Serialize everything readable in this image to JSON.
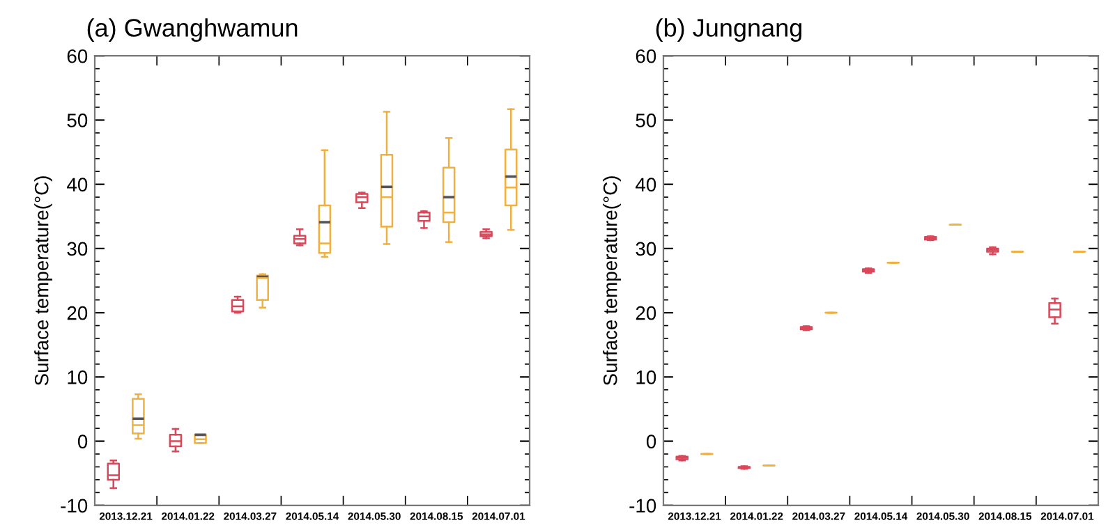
{
  "chart_data": [
    {
      "type": "box",
      "title": "(a) Gwanghwamun",
      "ylabel": "Surface temperature(°C)",
      "categories": [
        "2013.12.21",
        "2014.01.22",
        "2014.03.27",
        "2014.05.14",
        "2014.05.30",
        "2014.08.15",
        "2014.07.01"
      ],
      "ylim": [
        -10,
        60
      ],
      "yticks": [
        -10,
        0,
        10,
        20,
        30,
        40,
        50,
        60
      ],
      "grid": false,
      "series": [
        {
          "color": "#d9485a",
          "boxes": [
            {
              "low": -7.3,
              "q1": -6,
              "median": -5.3,
              "q3": -3.5,
              "high": -3
            },
            {
              "low": -1.6,
              "q1": -0.8,
              "median": 0,
              "q3": 1,
              "high": 1.9
            },
            {
              "low": 20,
              "q1": 20.2,
              "median": 21,
              "q3": 22,
              "high": 22.5
            },
            {
              "low": 30.5,
              "q1": 30.8,
              "median": 31.5,
              "q3": 32,
              "high": 33
            },
            {
              "low": 36.3,
              "q1": 37.2,
              "median": 38,
              "q3": 38.5,
              "high": 38.7
            },
            {
              "low": 33.2,
              "q1": 34.3,
              "median": 35,
              "q3": 35.6,
              "high": 35.8
            },
            {
              "low": 31.6,
              "q1": 31.9,
              "median": 32.2,
              "q3": 32.6,
              "high": 33
            }
          ]
        },
        {
          "color": "#f0b040",
          "boxes": [
            {
              "low": 0.4,
              "q1": 1.2,
              "median": 2.5,
              "q3": 6.6,
              "high": 7.3,
              "mean": 3.5
            },
            {
              "low": -0.3,
              "q1": -0.3,
              "median": 0.3,
              "q3": 1,
              "high": 1,
              "mean": 1
            },
            {
              "low": 20.8,
              "q1": 22,
              "median": 25.4,
              "q3": 25.8,
              "high": 26,
              "mean": 25.6
            },
            {
              "low": 28.7,
              "q1": 29.3,
              "median": 30.8,
              "q3": 36.7,
              "high": 45.3,
              "mean": 34.1
            },
            {
              "low": 30.7,
              "q1": 33.4,
              "median": 38,
              "q3": 44.6,
              "high": 51.3,
              "mean": 39.6
            },
            {
              "low": 31,
              "q1": 34.1,
              "median": 35.6,
              "q3": 42.6,
              "high": 47.2,
              "mean": 38
            },
            {
              "low": 32.9,
              "q1": 36.7,
              "median": 39.5,
              "q3": 45.4,
              "high": 51.7,
              "mean": 41.2
            }
          ]
        }
      ]
    },
    {
      "type": "box",
      "title": "(b) Jungnang",
      "ylabel": "Surface temperature(°C)",
      "categories": [
        "2013.12.21",
        "2014.01.22",
        "2014.03.27",
        "2014.05.14",
        "2014.05.30",
        "2014.08.15",
        "2014.07.01"
      ],
      "ylim": [
        -10,
        60
      ],
      "yticks": [
        -10,
        0,
        10,
        20,
        30,
        40,
        50,
        60
      ],
      "grid": false,
      "series": [
        {
          "color": "#d9485a",
          "boxes": [
            {
              "low": -3,
              "q1": -2.8,
              "median": -2.6,
              "q3": -2.4,
              "high": -2.3
            },
            {
              "low": -4.3,
              "q1": -4.2,
              "median": -4.1,
              "q3": -4,
              "high": -3.9
            },
            {
              "low": 17.3,
              "q1": 17.4,
              "median": 17.6,
              "q3": 17.8,
              "high": 17.9
            },
            {
              "low": 26.2,
              "q1": 26.4,
              "median": 26.6,
              "q3": 26.8,
              "high": 26.9
            },
            {
              "low": 31.3,
              "q1": 31.4,
              "median": 31.6,
              "q3": 31.8,
              "high": 31.9
            },
            {
              "low": 29.1,
              "q1": 29.5,
              "median": 29.8,
              "q3": 30,
              "high": 30.2
            },
            {
              "low": 18.3,
              "q1": 19.3,
              "median": 20.5,
              "q3": 21.5,
              "high": 22.2
            }
          ]
        },
        {
          "color": "#f0b040",
          "boxes": [
            {
              "low": -2,
              "q1": -2,
              "median": -2,
              "q3": -2,
              "high": -2
            },
            {
              "low": -3.8,
              "q1": -3.8,
              "median": -3.8,
              "q3": -3.8,
              "high": -3.8
            },
            {
              "low": 20,
              "q1": 20,
              "median": 20,
              "q3": 20,
              "high": 20
            },
            {
              "low": 27.8,
              "q1": 27.8,
              "median": 27.8,
              "q3": 27.8,
              "high": 27.8
            },
            {
              "low": 33.7,
              "q1": 33.7,
              "median": 33.7,
              "q3": 33.7,
              "high": 33.7
            },
            {
              "low": 29.5,
              "q1": 29.5,
              "median": 29.5,
              "q3": 29.5,
              "high": 29.5
            },
            {
              "low": 29.5,
              "q1": 29.5,
              "median": 29.5,
              "q3": 29.5,
              "high": 29.5
            }
          ]
        }
      ]
    }
  ]
}
